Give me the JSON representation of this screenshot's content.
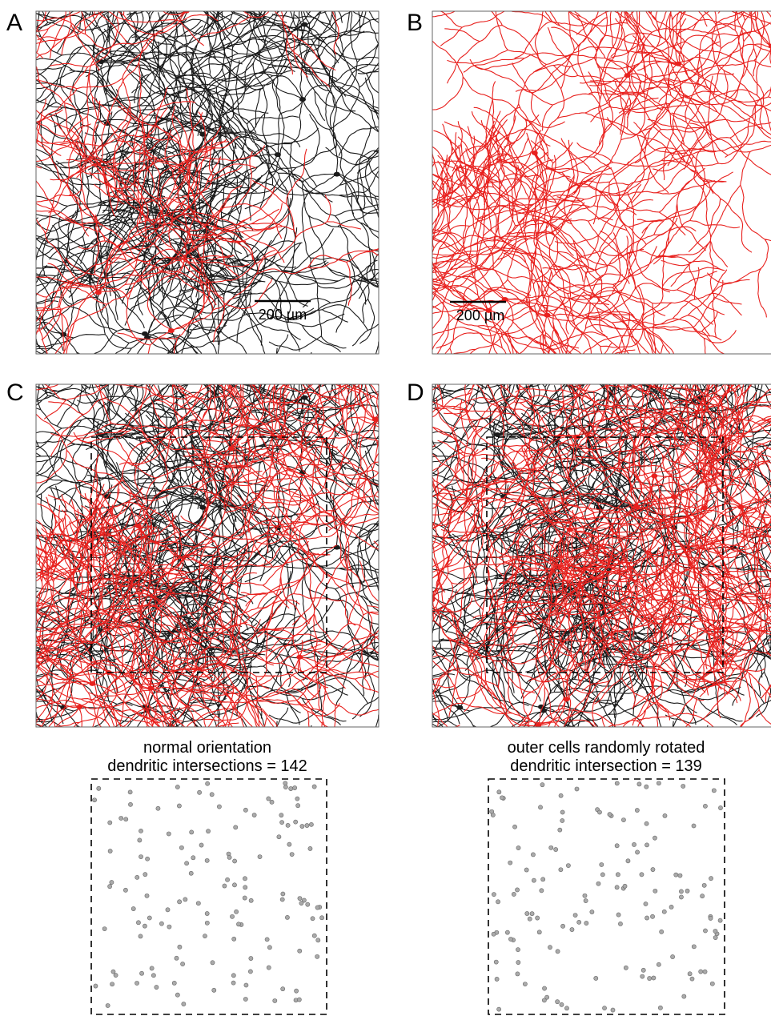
{
  "panels": [
    {
      "label": "A",
      "scale_bar": "200 µm"
    },
    {
      "label": "B",
      "scale_bar": "200 µm"
    },
    {
      "label": "C"
    },
    {
      "label": "D"
    }
  ],
  "captions": [
    {
      "line1": "normal orientation",
      "line2": "dendritic intersections = 142"
    },
    {
      "line1": "outer cells randomly rotated",
      "line2": "dendritic intersection = 139"
    }
  ]
}
